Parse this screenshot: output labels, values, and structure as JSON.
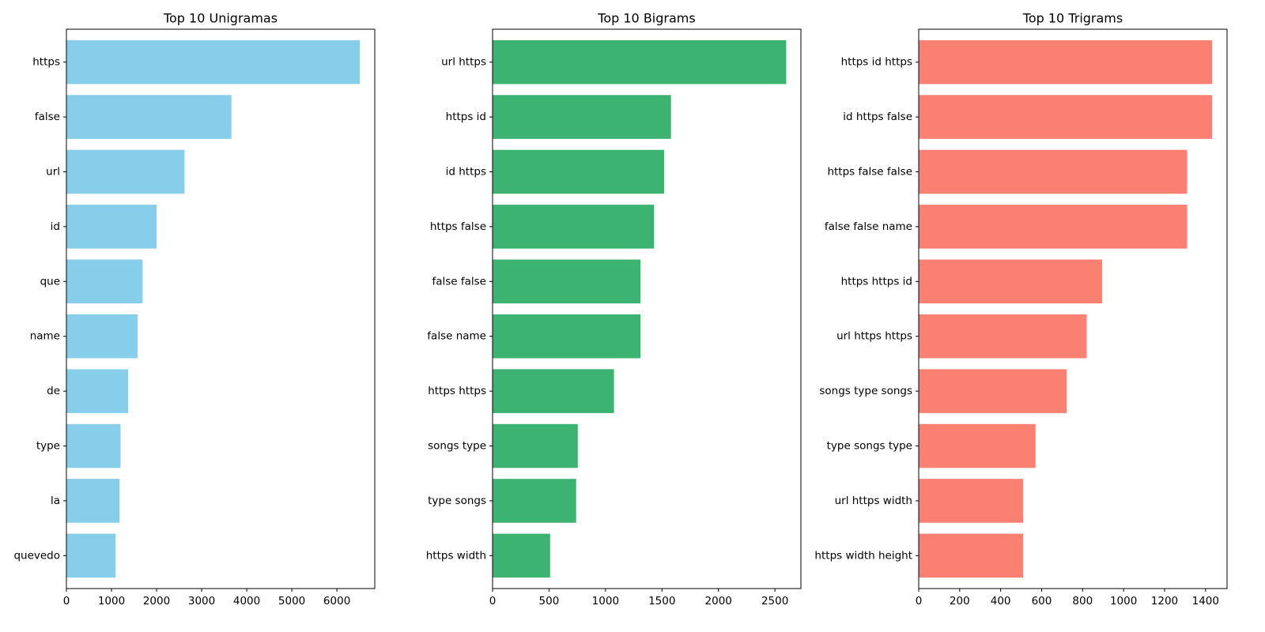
{
  "chart_data": [
    {
      "type": "bar",
      "orientation": "horizontal",
      "title": "Top 10 Unigramas",
      "categories": [
        "https",
        "false",
        "url",
        "id",
        "que",
        "name",
        "de",
        "type",
        "la",
        "quevedo"
      ],
      "values": [
        6510,
        3660,
        2620,
        2000,
        1690,
        1580,
        1370,
        1200,
        1180,
        1090
      ],
      "xlim": [
        0,
        6840
      ],
      "xticks": [
        0,
        1000,
        2000,
        3000,
        4000,
        5000,
        6000
      ],
      "color": "#87CEEB",
      "grid": false
    },
    {
      "type": "bar",
      "orientation": "horizontal",
      "title": "Top 10 Bigrams",
      "categories": [
        "url https",
        "https id",
        "id https",
        "https false",
        "false false",
        "false name",
        "https https",
        "songs type",
        "type songs",
        "https width"
      ],
      "values": [
        2600,
        1580,
        1520,
        1430,
        1310,
        1310,
        1075,
        755,
        740,
        510
      ],
      "xlim": [
        0,
        2730
      ],
      "xticks": [
        0,
        500,
        1000,
        1500,
        2000,
        2500
      ],
      "color": "#3CB371",
      "grid": false
    },
    {
      "type": "bar",
      "orientation": "horizontal",
      "title": "Top 10 Trigrams",
      "categories": [
        "https id https",
        "id https false",
        "https false false",
        "false false name",
        "https https id",
        "url https https",
        "songs type songs",
        "type songs type",
        "url https width",
        "https width height"
      ],
      "values": [
        1432,
        1432,
        1310,
        1310,
        895,
        820,
        722,
        570,
        510,
        510
      ],
      "xlim": [
        0,
        1505
      ],
      "xticks": [
        0,
        200,
        400,
        600,
        800,
        1000,
        1200,
        1400
      ],
      "color": "#FA8072",
      "grid": false
    }
  ]
}
